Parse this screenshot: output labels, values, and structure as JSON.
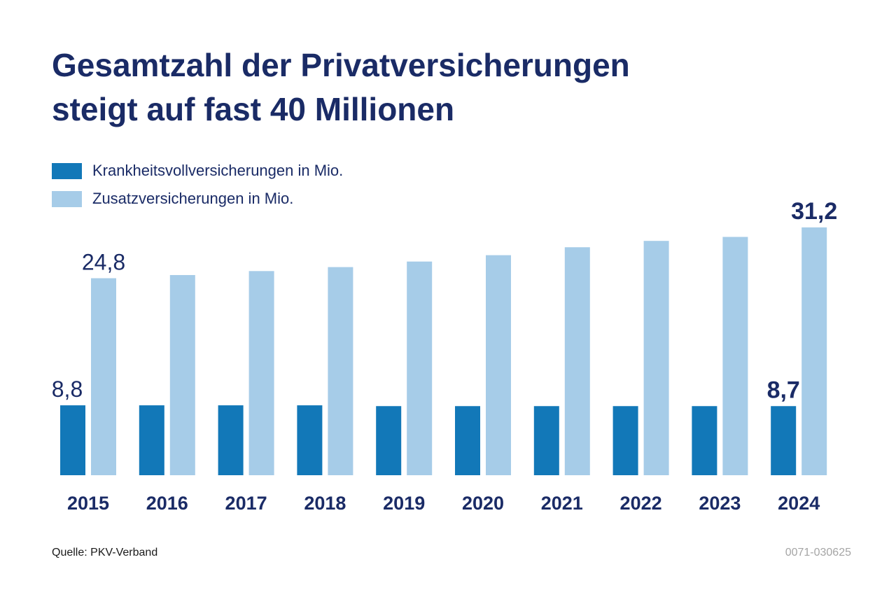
{
  "title_line1": "Gesamtzahl der Privatversicherungen",
  "title_line2": "steigt auf fast 40 Millionen",
  "source": "Quelle: PKV-Verband",
  "code": "0071-030625",
  "colors": {
    "dark_bar": "#1278b8",
    "light_bar": "#a6cce8",
    "text": "#1a2b66"
  },
  "chart_data": {
    "type": "bar",
    "categories": [
      "2015",
      "2016",
      "2017",
      "2018",
      "2019",
      "2020",
      "2021",
      "2022",
      "2023",
      "2024"
    ],
    "series": [
      {
        "name": "Krankheitsvollversicherungen in Mio.",
        "color": "#1278b8",
        "values": [
          8.8,
          8.8,
          8.8,
          8.8,
          8.7,
          8.7,
          8.7,
          8.7,
          8.7,
          8.7
        ],
        "labels": {
          "2015": "8,8",
          "2024": "8,7"
        }
      },
      {
        "name": "Zusatzversicherungen in Mio.",
        "color": "#a6cce8",
        "values": [
          24.8,
          25.2,
          25.7,
          26.2,
          26.9,
          27.7,
          28.7,
          29.5,
          30.0,
          31.2
        ],
        "labels": {
          "2015": "24,8",
          "2024": "31,2"
        }
      }
    ],
    "emphasized_labels": [
      "2024"
    ],
    "ylim": [
      0,
      33
    ],
    "grid": false,
    "legend_position": "top-left"
  }
}
